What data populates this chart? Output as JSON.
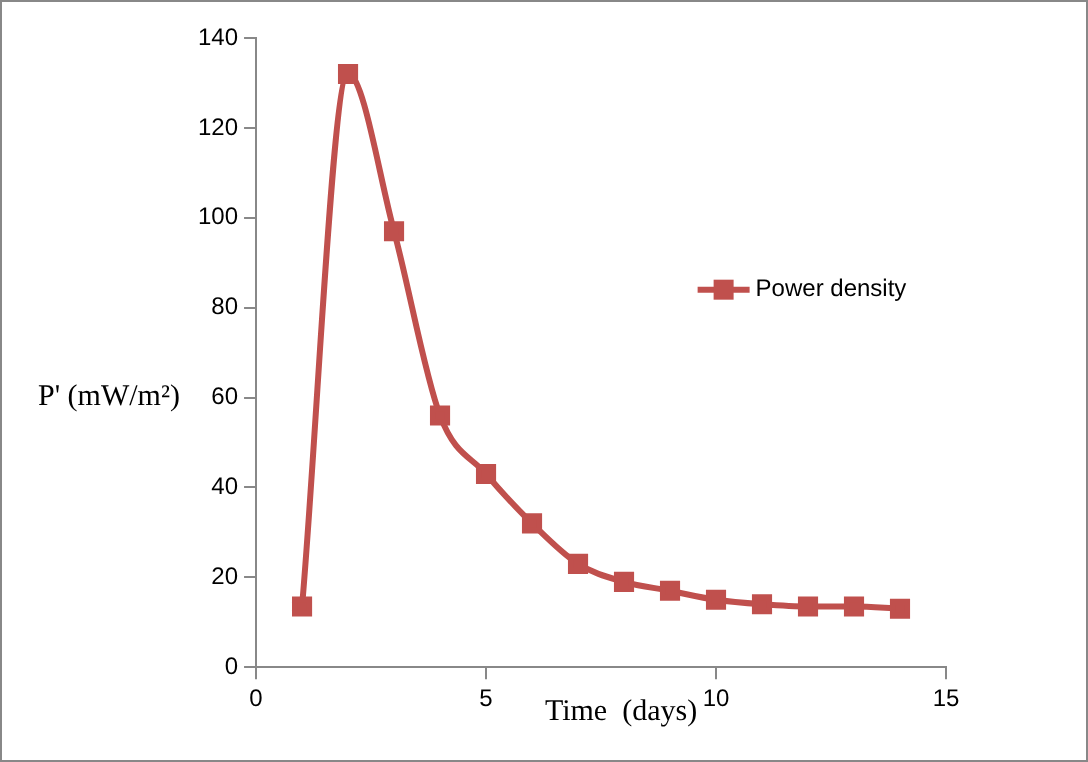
{
  "chart_data": {
    "type": "line",
    "xlabel": "Time  (days)",
    "ylabel": "P' (mW/m²)",
    "x": [
      1,
      2,
      3,
      4,
      5,
      6,
      7,
      8,
      9,
      10,
      11,
      12,
      13,
      14
    ],
    "series": [
      {
        "name": "Power density",
        "color": "#c0504d",
        "values": [
          13.5,
          132,
          97,
          56,
          43,
          32,
          23,
          19,
          17,
          15,
          14,
          13.5,
          13.5,
          13
        ]
      }
    ],
    "xlim": [
      0,
      15
    ],
    "xticks": [
      0,
      5,
      10,
      15
    ],
    "ylim": [
      0,
      140
    ],
    "yticks": [
      0,
      20,
      40,
      60,
      80,
      100,
      120,
      140
    ],
    "grid": false,
    "legend": "right",
    "marker": "square",
    "line_style": "solid"
  }
}
